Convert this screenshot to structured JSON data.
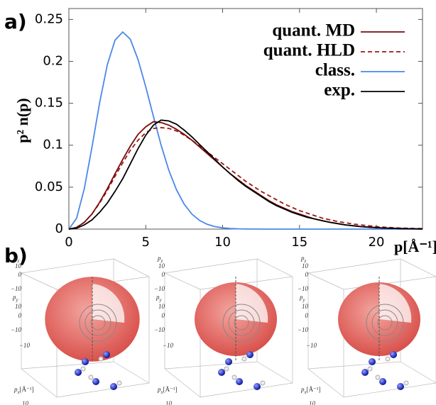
{
  "chart_data": {
    "type": "line",
    "panel_label": "a)",
    "ylabel": "p² n(p)",
    "xlabel": "p[Å⁻¹]",
    "x": [
      0,
      0.5,
      1,
      1.5,
      2,
      2.5,
      3,
      3.5,
      4,
      4.5,
      5,
      5.5,
      6,
      6.5,
      7,
      7.5,
      8,
      8.5,
      9,
      9.5,
      10,
      10.5,
      11,
      11.5,
      12,
      12.5,
      13,
      13.5,
      14,
      14.5,
      15,
      15.5,
      16,
      16.5,
      17,
      17.5,
      18,
      18.5,
      19,
      19.5,
      20,
      20.5,
      21,
      21.5,
      22,
      22.5,
      23
    ],
    "series": [
      {
        "name": "quant. MD",
        "color": "#7a0a0a",
        "dash": false,
        "values": [
          0,
          0.002,
          0.008,
          0.018,
          0.032,
          0.048,
          0.066,
          0.083,
          0.099,
          0.113,
          0.122,
          0.128,
          0.127,
          0.124,
          0.119,
          0.113,
          0.106,
          0.098,
          0.09,
          0.082,
          0.074,
          0.066,
          0.059,
          0.052,
          0.046,
          0.04,
          0.034,
          0.029,
          0.025,
          0.021,
          0.018,
          0.015,
          0.012,
          0.01,
          0.008,
          0.0065,
          0.005,
          0.004,
          0.003,
          0.0023,
          0.0017,
          0.0012,
          0.0009,
          0.0006,
          0.0004,
          0.0003,
          0.0002
        ]
      },
      {
        "name": "quant. HLD",
        "color": "#a01414",
        "dash": true,
        "values": [
          0,
          0.002,
          0.008,
          0.018,
          0.031,
          0.046,
          0.063,
          0.079,
          0.094,
          0.106,
          0.115,
          0.12,
          0.121,
          0.12,
          0.117,
          0.112,
          0.106,
          0.099,
          0.092,
          0.085,
          0.078,
          0.071,
          0.064,
          0.057,
          0.051,
          0.045,
          0.04,
          0.035,
          0.03,
          0.026,
          0.022,
          0.019,
          0.016,
          0.013,
          0.011,
          0.009,
          0.0075,
          0.006,
          0.005,
          0.004,
          0.003,
          0.0023,
          0.0018,
          0.0013,
          0.001,
          0.0008,
          0.0006
        ]
      },
      {
        "name": "class.",
        "color": "#4a88e8",
        "dash": false,
        "values": [
          0,
          0.0128,
          0.0481,
          0.0977,
          0.1506,
          0.1959,
          0.2253,
          0.235,
          0.2263,
          0.2021,
          0.1695,
          0.1341,
          0.1,
          0.0702,
          0.0468,
          0.0297,
          0.0179,
          0.0103,
          0.0057,
          0.003,
          0.0015,
          0.0007,
          0.0003,
          0.0001,
          0.0001,
          0,
          0,
          0,
          0,
          0,
          0,
          0,
          0,
          0,
          0,
          0,
          0,
          0,
          0,
          0,
          0,
          0,
          0,
          0,
          0,
          0,
          0
        ]
      },
      {
        "name": "exp.",
        "color": "#000000",
        "dash": false,
        "values": [
          0,
          0.001,
          0.005,
          0.011,
          0.02,
          0.031,
          0.045,
          0.06,
          0.078,
          0.096,
          0.112,
          0.124,
          0.13,
          0.129,
          0.125,
          0.118,
          0.11,
          0.101,
          0.092,
          0.083,
          0.074,
          0.066,
          0.058,
          0.051,
          0.045,
          0.039,
          0.033,
          0.028,
          0.024,
          0.02,
          0.017,
          0.014,
          0.012,
          0.01,
          0.008,
          0.0065,
          0.005,
          0.004,
          0.003,
          0.0024,
          0.0018,
          0.0013,
          0.001,
          0.0007,
          0.0005,
          0.0003,
          0.0002
        ]
      }
    ],
    "xlim": [
      0,
      23
    ],
    "ylim": [
      0,
      0.263
    ],
    "xticks": [
      0,
      5,
      10,
      15,
      20
    ],
    "yticks": [
      0,
      0.05,
      0.1,
      0.15,
      0.2,
      0.25
    ],
    "legend": "upper right",
    "grid": false
  },
  "panel_b": {
    "label": "b)",
    "plots": [
      {
        "pz": {
          "base": "p",
          "sub": "z"
        },
        "py": {
          "base": "p",
          "sub": "y"
        },
        "px": {
          "base": "p",
          "sub": "x",
          "unit": "[Å⁻¹]"
        },
        "ticks": [
          "10",
          "0",
          "−10",
          "10",
          "0",
          "−10",
          "−10",
          "10"
        ]
      },
      {
        "pz": {
          "base": "p",
          "sub": "z"
        },
        "py": {
          "base": "p",
          "sub": "y"
        },
        "px": {
          "base": "p",
          "sub": "x",
          "unit": "[Å⁻¹]"
        },
        "ticks": [
          "10",
          "0",
          "−10",
          "10",
          "0",
          "−10",
          "−10",
          "10"
        ]
      },
      {
        "pz": {
          "base": "p",
          "sub": "z"
        },
        "py": {
          "base": "p",
          "sub": "y"
        },
        "px": {
          "base": "p",
          "sub": "x",
          "unit": "[Å⁻¹]"
        },
        "ticks": [
          "10",
          "0",
          "−10",
          "10",
          "0",
          "−10",
          "−10",
          "10"
        ]
      }
    ]
  }
}
